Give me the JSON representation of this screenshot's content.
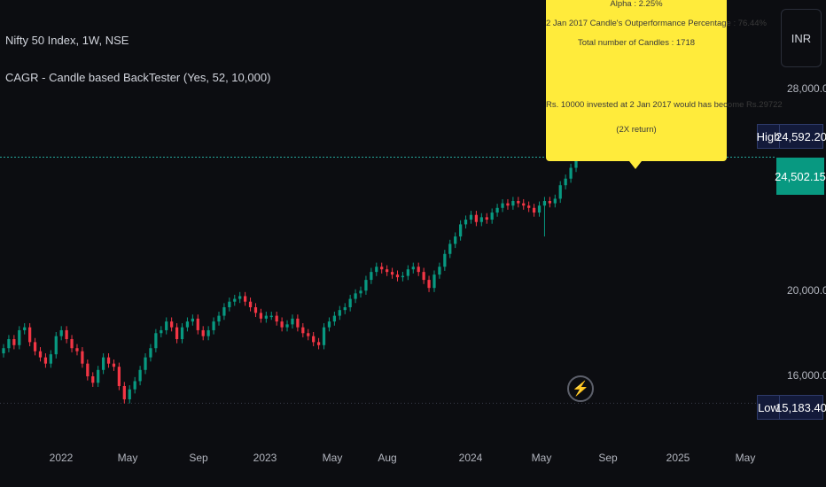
{
  "legend": {
    "title": "Nifty 50 Index, 1W, NSE",
    "indicator": "CAGR - Candle based BackTester (Yes, 52, 10,000)"
  },
  "tooltip": {
    "lines": [
      "Alpha : 2.25%",
      "2 Jan 2017 Candle's Outperformance Percentage : 76.44%",
      "Total number of Candles : 1718",
      "",
      "Rs. 10000 invested at 2 Jan 2017 would has become Rs.29722",
      "(2X return)"
    ]
  },
  "currency_button": {
    "label": "INR"
  },
  "price_axis": {
    "labels": [
      "28,000.00",
      "20,000.00",
      "16,000.00"
    ]
  },
  "tags": {
    "high_label": "High",
    "high_value": "24,592.20",
    "last_value": "24,502.15",
    "low_label": "Low",
    "low_value": "15,183.40"
  },
  "time_axis": [
    "2022",
    "May",
    "Sep",
    "2023",
    "May",
    "Aug",
    "2024",
    "May",
    "Sep",
    "2025",
    "May"
  ],
  "colors": {
    "up": "#089981",
    "down": "#f23645",
    "tooltip": "#ffeb3b",
    "last_price_line": "#26a69a"
  },
  "icons": {
    "replay": "lightning-icon"
  },
  "chart_data": {
    "type": "candlestick",
    "title": "Nifty 50 Index, 1W, NSE",
    "xlabel": "",
    "ylabel": "",
    "log_scale": true,
    "ylim": [
      14700,
      30500
    ],
    "grid": false,
    "high": 24592.2,
    "low": 15183.4,
    "last": 24502.15,
    "closes": [
      16900,
      17200,
      17000,
      17500,
      17600,
      17100,
      16800,
      16600,
      16400,
      16700,
      17300,
      17500,
      17200,
      16900,
      16800,
      16400,
      16000,
      15800,
      16200,
      16600,
      16400,
      16300,
      15700,
      15300,
      15600,
      15850,
      16200,
      16600,
      16900,
      17400,
      17500,
      17800,
      17600,
      17200,
      17600,
      17800,
      17900,
      17500,
      17300,
      17500,
      17800,
      18000,
      18300,
      18500,
      18600,
      18700,
      18500,
      18300,
      18100,
      17900,
      18000,
      18000,
      17800,
      17600,
      17700,
      17900,
      17600,
      17400,
      17300,
      17100,
      17000,
      17600,
      17800,
      18000,
      18200,
      18300,
      18600,
      18800,
      18900,
      19300,
      19600,
      19800,
      19700,
      19600,
      19500,
      19400,
      19450,
      19700,
      19800,
      19600,
      19300,
      19000,
      19500,
      19800,
      20300,
      20700,
      21000,
      21500,
      21700,
      21900,
      21600,
      21800,
      21700,
      22000,
      22200,
      22400,
      22300,
      22500,
      22400,
      22300,
      22200,
      22000,
      22300,
      22500,
      22400,
      22600,
      23200,
      23500,
      24000,
      24500
    ],
    "spike_low": 21000
  }
}
